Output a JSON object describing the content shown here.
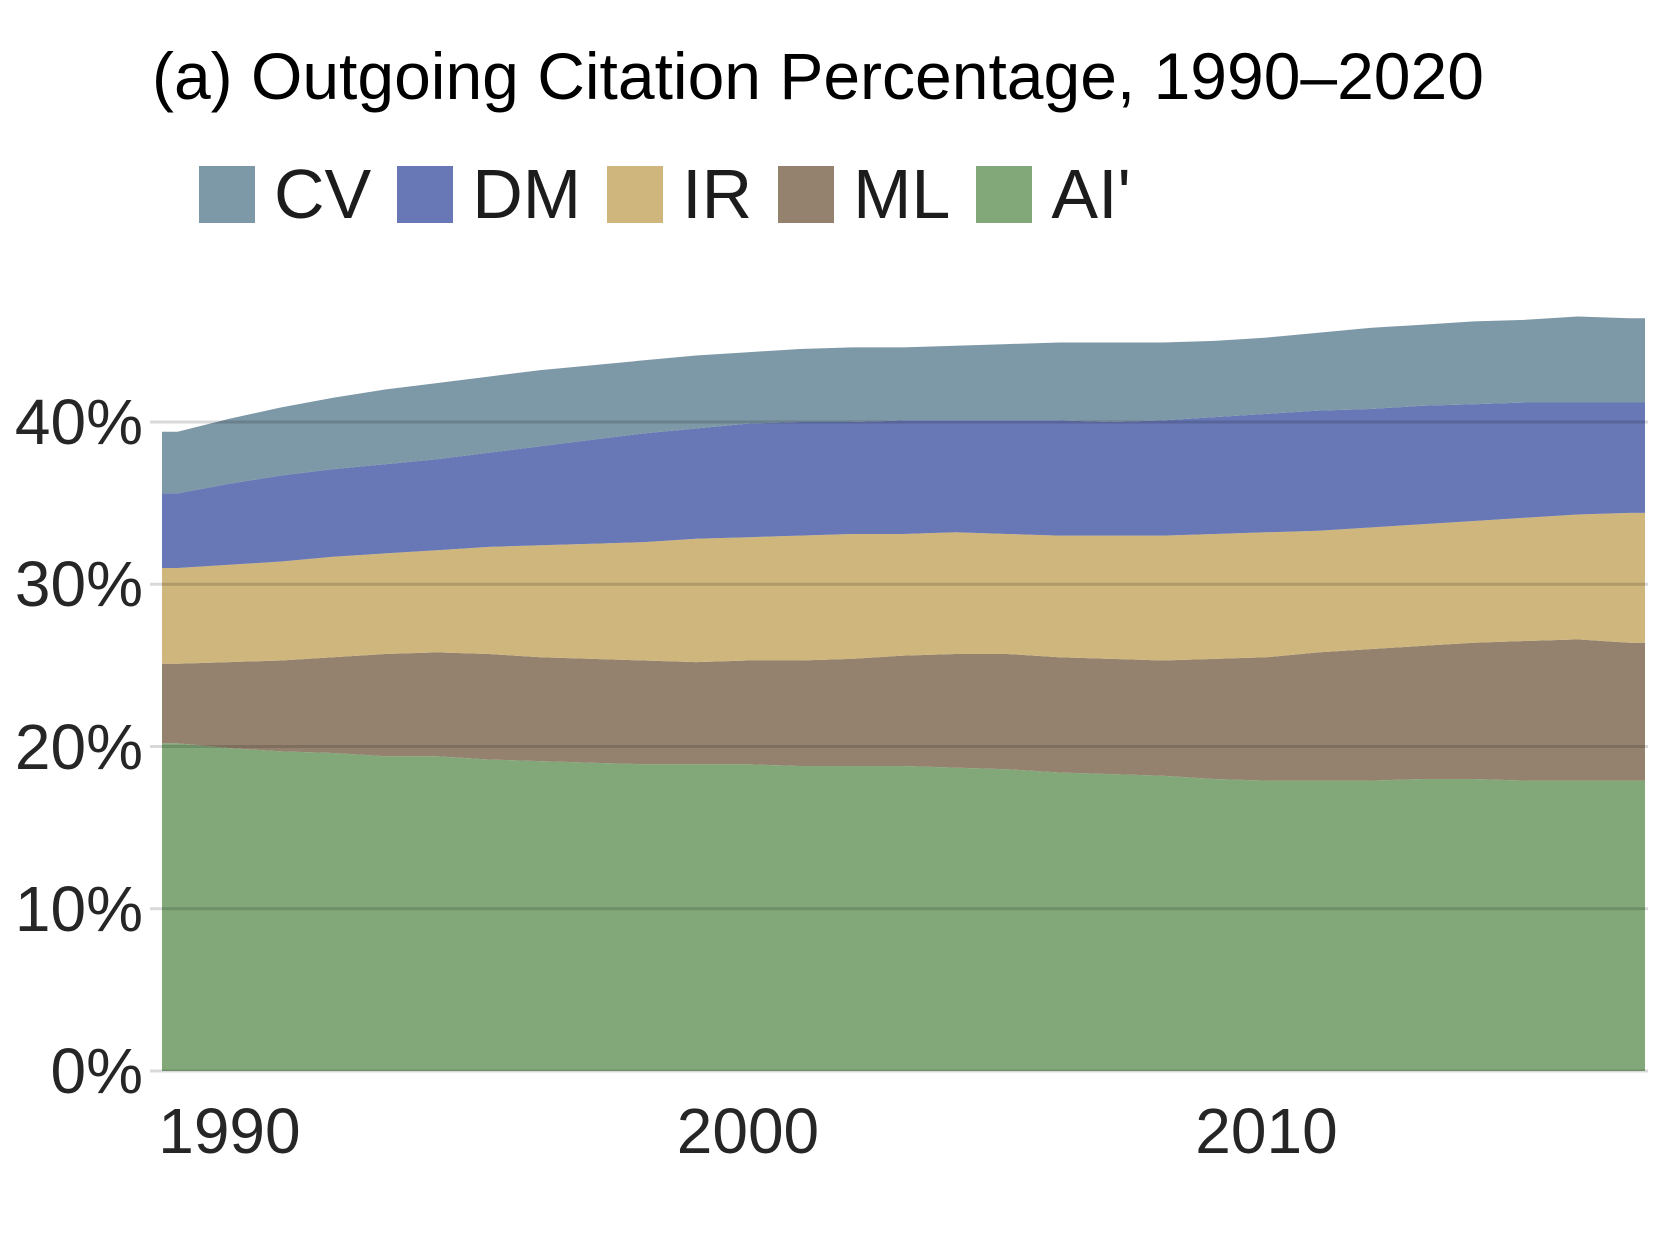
{
  "title": "(a) Outgoing Citation Percentage, 1990–2020",
  "legend": [
    {
      "label": "CV",
      "color": "#7D98A6"
    },
    {
      "label": "DM",
      "color": "#6877B5"
    },
    {
      "label": "IR",
      "color": "#CFB67D"
    },
    {
      "label": "ML",
      "color": "#94826F"
    },
    {
      "label": "AI'",
      "color": "#82A87A"
    }
  ],
  "chart_data": {
    "type": "area",
    "stacked": true,
    "title": "(a) Outgoing Citation Percentage, 1990–2020",
    "xlabel": "",
    "ylabel": "",
    "grid": "horizontal-major",
    "gridline_color": "rgba(0,0,0,0.15)",
    "legend_position": "top-left",
    "xlim": [
      1988.7,
      2017.3
    ],
    "ylim": [
      0,
      50
    ],
    "x": [
      1989,
      1990,
      1991,
      1992,
      1993,
      1994,
      1995,
      1996,
      1997,
      1998,
      1999,
      2000,
      2001,
      2002,
      2003,
      2004,
      2005,
      2006,
      2007,
      2008,
      2009,
      2010,
      2011,
      2012,
      2013,
      2014,
      2015,
      2016,
      2017
    ],
    "x_ticks": [
      {
        "v": 1990,
        "label": "1990"
      },
      {
        "v": 2000,
        "label": "2000"
      },
      {
        "v": 2010,
        "label": "2010"
      }
    ],
    "y_ticks": [
      {
        "v": 0,
        "label": "0%"
      },
      {
        "v": 10,
        "label": "10%"
      },
      {
        "v": 20,
        "label": "20%"
      },
      {
        "v": 30,
        "label": "30%"
      },
      {
        "v": 40,
        "label": "40%"
      }
    ],
    "series_note": "series listed bottom-to-top of the stack; values are percentages per year",
    "series": [
      {
        "name": "AI'",
        "color": "#82A87A",
        "values": [
          20.2,
          19.9,
          19.7,
          19.6,
          19.4,
          19.4,
          19.2,
          19.1,
          19.0,
          18.9,
          18.9,
          18.9,
          18.8,
          18.8,
          18.8,
          18.7,
          18.6,
          18.4,
          18.3,
          18.2,
          18.0,
          17.9,
          17.9,
          17.9,
          18.0,
          18.0,
          17.9,
          17.9,
          17.9
        ]
      },
      {
        "name": "ML",
        "color": "#94826F",
        "values": [
          4.9,
          5.3,
          5.6,
          5.9,
          6.3,
          6.4,
          6.5,
          6.4,
          6.4,
          6.4,
          6.3,
          6.4,
          6.5,
          6.6,
          6.8,
          7.0,
          7.1,
          7.1,
          7.1,
          7.1,
          7.4,
          7.6,
          7.9,
          8.1,
          8.2,
          8.4,
          8.6,
          8.7,
          8.5
        ]
      },
      {
        "name": "IR",
        "color": "#CFB67D",
        "values": [
          5.9,
          6.0,
          6.1,
          6.2,
          6.2,
          6.3,
          6.6,
          6.9,
          7.1,
          7.3,
          7.6,
          7.6,
          7.7,
          7.7,
          7.5,
          7.5,
          7.4,
          7.5,
          7.6,
          7.7,
          7.7,
          7.7,
          7.5,
          7.5,
          7.5,
          7.5,
          7.6,
          7.7,
          8.0
        ]
      },
      {
        "name": "DM",
        "color": "#6877B5",
        "values": [
          4.6,
          5.0,
          5.3,
          5.4,
          5.5,
          5.6,
          5.8,
          6.1,
          6.4,
          6.7,
          6.8,
          7.0,
          7.0,
          6.9,
          7.0,
          6.9,
          7.0,
          7.1,
          7.0,
          7.1,
          7.2,
          7.3,
          7.4,
          7.3,
          7.3,
          7.2,
          7.1,
          6.9,
          6.8
        ]
      },
      {
        "name": "CV",
        "color": "#7D98A6",
        "values": [
          3.8,
          4.0,
          4.2,
          4.4,
          4.6,
          4.7,
          4.7,
          4.7,
          4.6,
          4.5,
          4.5,
          4.4,
          4.5,
          4.6,
          4.5,
          4.6,
          4.7,
          4.8,
          4.9,
          4.8,
          4.7,
          4.7,
          4.8,
          5.0,
          5.0,
          5.1,
          5.1,
          5.3,
          5.2
        ]
      }
    ]
  }
}
